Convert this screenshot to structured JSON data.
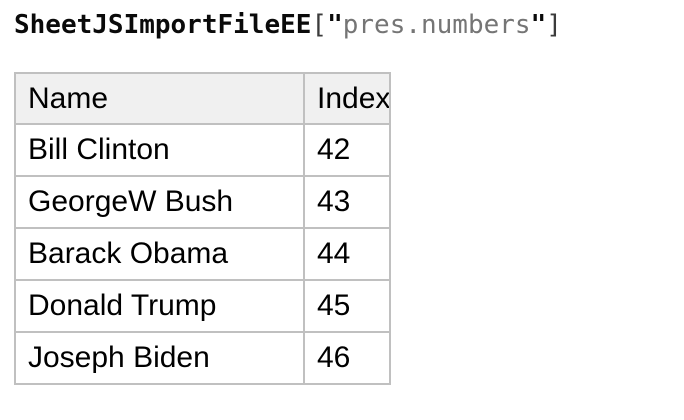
{
  "title": {
    "function_name": "SheetJSImportFileEE",
    "open_bracket": "[",
    "open_quote": "\"",
    "string_value": "pres.numbers",
    "close_quote": "\"",
    "close_bracket": "]",
    "full_text": "SheetJSImportFileEE[\"pres.numbers\"]"
  },
  "table": {
    "headers": [
      "Name",
      "Index"
    ],
    "rows": [
      [
        "Bill Clinton",
        "42"
      ],
      [
        "GeorgeW Bush",
        "43"
      ],
      [
        "Barack Obama",
        "44"
      ],
      [
        "Donald Trump",
        "45"
      ],
      [
        "Joseph Biden",
        "46"
      ]
    ]
  },
  "colors": {
    "primary_text": "#000000",
    "code_string_text": "#757575",
    "code_punctuation_text": "#3b3b3b",
    "table_border": "#c0c0c0",
    "table_header_background": "#f0f0f0",
    "page_background": "#ffffff"
  }
}
